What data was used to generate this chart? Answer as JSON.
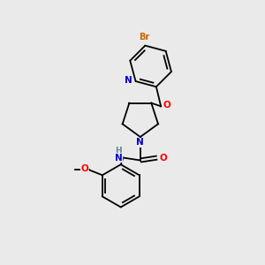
{
  "background_color": "#eaeaea",
  "atom_colors": {
    "C": "#000000",
    "N": "#0000cc",
    "O": "#ff0000",
    "Br": "#cc6600",
    "H": "#5a8a8a"
  },
  "figsize": [
    3.0,
    3.0
  ],
  "dpi": 100,
  "bond_lw": 1.3,
  "double_sep": 0.07,
  "font_size_atom": 7.5,
  "font_size_br": 7.0
}
